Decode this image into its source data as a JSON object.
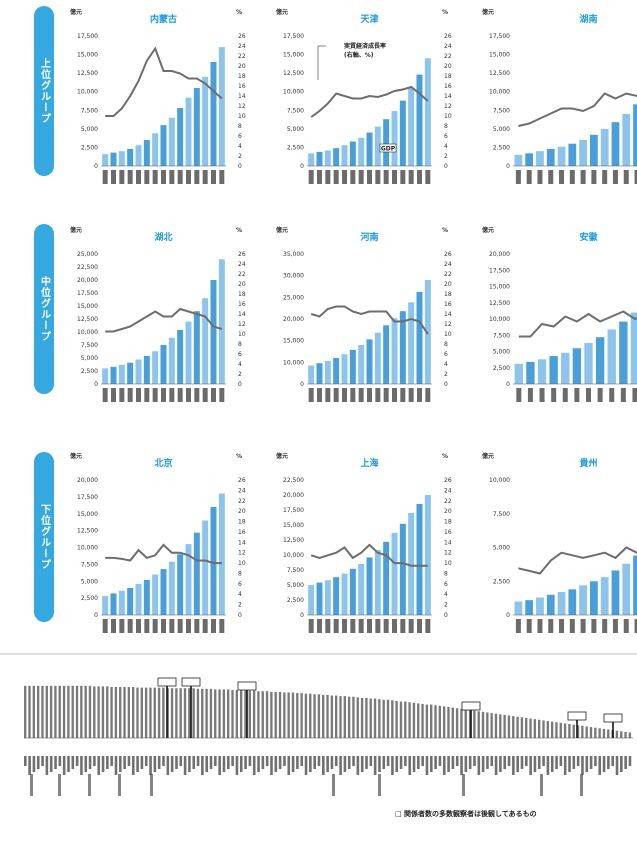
{
  "groups": [
    {
      "label": "上位グループ"
    },
    {
      "label": "中位グループ"
    },
    {
      "label": "下位グループ"
    }
  ],
  "chart_data": [
    {
      "type": "bar",
      "title": "内蒙古",
      "left_unit": "億元",
      "right_unit": "%",
      "ylim": [
        0,
        17500
      ],
      "yticks": [
        "17,500",
        "15,000",
        "12,500",
        "10,000",
        "7,500",
        "5,000",
        "2,500",
        "0"
      ],
      "rticks": [
        "26",
        "24",
        "22",
        "20",
        "18",
        "16",
        "14",
        "12",
        "10",
        "8",
        "6",
        "4",
        "2",
        "0"
      ],
      "rlim": [
        0,
        26
      ],
      "series": [
        {
          "name": "",
          "kind": "bar",
          "values": [
            1600,
            1800,
            2000,
            2300,
            2800,
            3500,
            4400,
            5500,
            6500,
            7800,
            9200,
            10500,
            12000,
            14000,
            16000
          ]
        },
        {
          "name": "",
          "kind": "line",
          "values": [
            10,
            10,
            11.5,
            14,
            17,
            21,
            23.5,
            19,
            19,
            18.5,
            17.5,
            17.5,
            16.5,
            15,
            13.5
          ]
        }
      ]
    },
    {
      "type": "bar",
      "title": "天津",
      "left_unit": "億元",
      "right_unit": "%",
      "ylim": [
        0,
        17500
      ],
      "yticks": [
        "17,500",
        "15,000",
        "12,500",
        "10,000",
        "7,500",
        "5,000",
        "2,500",
        "0"
      ],
      "rticks": [
        "26",
        "24",
        "22",
        "20",
        "18",
        "16",
        "14",
        "12",
        "10",
        "8",
        "6",
        "4",
        "2",
        "0"
      ],
      "rlim": [
        0,
        26
      ],
      "annotations": [
        "実質経済成長率",
        "(右軸、%)",
        "GDP"
      ],
      "series": [
        {
          "name": "",
          "kind": "bar",
          "values": [
            1700,
            1900,
            2100,
            2400,
            2800,
            3300,
            3800,
            4500,
            5300,
            6300,
            7400,
            8800,
            10500,
            12300,
            14500
          ]
        },
        {
          "name": "",
          "kind": "line",
          "values": [
            9.8,
            11,
            12.5,
            14.5,
            14,
            13.5,
            13.5,
            14,
            13.8,
            14.3,
            15,
            15.3,
            15.8,
            14.5,
            13
          ]
        }
      ]
    },
    {
      "type": "bar",
      "title": "湖南",
      "left_unit": "億元",
      "right_unit": "%",
      "ylim": [
        0,
        17500
      ],
      "yticks": [
        "17,500",
        "15,000",
        "12,500",
        "10,000",
        "7,500",
        "5,000",
        "2,500",
        "0"
      ],
      "series": [
        {
          "name": "",
          "kind": "bar",
          "values": [
            1500,
            1700,
            2000,
            2300,
            2600,
            3000,
            3500,
            4200,
            5000,
            5900,
            7000,
            8300,
            9700,
            11500
          ]
        },
        {
          "name": "",
          "kind": "line",
          "values": [
            8,
            8.5,
            9.5,
            10.5,
            11.5,
            11.5,
            11,
            12,
            14.5,
            13.5,
            14.5,
            14,
            15,
            14.5
          ]
        }
      ]
    },
    {
      "type": "bar",
      "title": "湖北",
      "left_unit": "億元",
      "right_unit": "%",
      "ylim": [
        0,
        25000
      ],
      "yticks": [
        "25,000",
        "22,500",
        "20,000",
        "17,500",
        "15,000",
        "12,500",
        "10,000",
        "7,500",
        "5,000",
        "2,500",
        "0"
      ],
      "rticks": [
        "26",
        "24",
        "22",
        "20",
        "18",
        "16",
        "14",
        "12",
        "10",
        "8",
        "6",
        "4",
        "2",
        "0"
      ],
      "rlim": [
        0,
        26
      ],
      "series": [
        {
          "name": "",
          "kind": "bar",
          "values": [
            3000,
            3300,
            3700,
            4100,
            4700,
            5400,
            6300,
            7500,
            8900,
            10400,
            12000,
            14000,
            16500,
            20000,
            24000
          ]
        },
        {
          "name": "",
          "kind": "line",
          "values": [
            10.5,
            10.5,
            11,
            11.5,
            12.5,
            13.5,
            14.5,
            13.5,
            13.5,
            15,
            14.5,
            14,
            13.5,
            11.5,
            11
          ]
        }
      ]
    },
    {
      "type": "bar",
      "title": "河南",
      "left_unit": "億元",
      "right_unit": "%",
      "ylim": [
        0,
        35000
      ],
      "yticks": [
        "35,000",
        "30,000",
        "25,000",
        "20,000",
        "15,000",
        "10,000",
        "0"
      ],
      "rticks": [
        "26",
        "24",
        "22",
        "20",
        "18",
        "16",
        "14",
        "12",
        "10",
        "8",
        "6",
        "4",
        "2",
        "0"
      ],
      "rlim": [
        0,
        26
      ],
      "series": [
        {
          "name": "",
          "kind": "bar",
          "values": [
            5000,
            5600,
            6200,
            7000,
            8000,
            9200,
            10500,
            12000,
            13800,
            15800,
            17700,
            19600,
            22000,
            24800,
            28000
          ]
        },
        {
          "name": "",
          "kind": "line",
          "values": [
            14,
            13.5,
            15,
            15.5,
            15.5,
            14.5,
            14,
            14.5,
            14.5,
            14.5,
            12.5,
            12.5,
            13,
            12.5,
            10
          ]
        }
      ]
    },
    {
      "type": "bar",
      "title": "安徽",
      "left_unit": "億元",
      "right_unit": "%",
      "ylim": [
        0,
        20000
      ],
      "yticks": [
        "20,000",
        "17,500",
        "15,000",
        "12,500",
        "10,000",
        "7,500",
        "5,000",
        "2,500",
        "0"
      ],
      "series": [
        {
          "name": "",
          "kind": "bar",
          "values": [
            3100,
            3400,
            3800,
            4300,
            4800,
            5500,
            6300,
            7200,
            8400,
            9600,
            11000,
            12500,
            14200
          ]
        },
        {
          "name": "",
          "kind": "line",
          "values": [
            9.5,
            9.5,
            12,
            11.5,
            13.5,
            12.5,
            14,
            12.5,
            13.5,
            14.5,
            13,
            14,
            13
          ]
        }
      ]
    },
    {
      "type": "bar",
      "title": "北京",
      "left_unit": "億元",
      "right_unit": "%",
      "ylim": [
        0,
        20000
      ],
      "yticks": [
        "20,000",
        "17,500",
        "15,000",
        "12,500",
        "10,000",
        "7,500",
        "5,000",
        "2,500",
        "0"
      ],
      "rticks": [
        "26",
        "24",
        "22",
        "20",
        "18",
        "16",
        "14",
        "12",
        "10",
        "8",
        "6",
        "4",
        "2",
        "0"
      ],
      "rlim": [
        0,
        26
      ],
      "series": [
        {
          "name": "",
          "kind": "bar",
          "values": [
            2800,
            3200,
            3600,
            4000,
            4600,
            5200,
            6000,
            6800,
            7900,
            9000,
            10500,
            12200,
            14000,
            16000,
            18000
          ]
        },
        {
          "name": "",
          "kind": "line",
          "values": [
            11,
            11,
            10.8,
            10.5,
            12.5,
            11,
            11.5,
            13.5,
            12,
            12,
            11.5,
            10.5,
            10.5,
            10,
            10
          ]
        }
      ]
    },
    {
      "type": "bar",
      "title": "上海",
      "left_unit": "億元",
      "right_unit": "%",
      "ylim": [
        0,
        22500
      ],
      "yticks": [
        "22,500",
        "20,000",
        "17,500",
        "15,000",
        "12,500",
        "10,000",
        "7,500",
        "5,000",
        "2,500",
        "0"
      ],
      "rticks": [
        "26",
        "24",
        "22",
        "20",
        "18",
        "16",
        "14",
        "12",
        "10",
        "8",
        "6",
        "4",
        "2",
        "0"
      ],
      "rlim": [
        0,
        26
      ],
      "series": [
        {
          "name": "",
          "kind": "bar",
          "values": [
            5000,
            5400,
            5800,
            6300,
            6900,
            7700,
            8500,
            9600,
            10800,
            12200,
            13700,
            15200,
            17000,
            18500,
            20000
          ]
        },
        {
          "name": "",
          "kind": "line",
          "values": [
            11.5,
            11,
            11.5,
            12,
            13,
            11,
            12,
            13.5,
            12,
            11.5,
            10,
            10,
            9.5,
            9.5,
            9.5
          ]
        }
      ]
    },
    {
      "type": "bar",
      "title": "貴州",
      "left_unit": "億元",
      "right_unit": "%",
      "ylim": [
        0,
        10000
      ],
      "yticks": [
        "10,000",
        "7,500",
        "5,000",
        "2,500",
        "0"
      ],
      "series": [
        {
          "name": "",
          "kind": "bar",
          "values": [
            1000,
            1100,
            1300,
            1500,
            1700,
            1900,
            2200,
            2500,
            2800,
            3300,
            3800,
            4400,
            5000,
            5700
          ]
        },
        {
          "name": "",
          "kind": "line",
          "values": [
            9,
            8.5,
            8,
            10.5,
            12,
            11.5,
            11,
            11.5,
            12,
            11,
            13,
            12,
            12.5,
            13
          ]
        }
      ]
    },
    {
      "type": "bar",
      "title": "",
      "ylim": [
        0,
        100
      ],
      "boxes": 6,
      "series": [
        {
          "name": "",
          "kind": "bar",
          "values": [
            86,
            86,
            86,
            86,
            86,
            86,
            86,
            86,
            86,
            86,
            86,
            86,
            86,
            86,
            86,
            86,
            85,
            85,
            85,
            85,
            84,
            84,
            84,
            84,
            84,
            84,
            83,
            83,
            83,
            83,
            83,
            83,
            83,
            82,
            82,
            82,
            82,
            82,
            82,
            82,
            81,
            81,
            81,
            81,
            80,
            80,
            80,
            80,
            79,
            79,
            79,
            78,
            78,
            78,
            77,
            77,
            77,
            76,
            76,
            76,
            75,
            75,
            75,
            74,
            74,
            73,
            73,
            72,
            72,
            71,
            71,
            70,
            70,
            69,
            69,
            68,
            68,
            67,
            66,
            66,
            65,
            65,
            64,
            63,
            63,
            62,
            61,
            60,
            60,
            59,
            58,
            57,
            56,
            55,
            55,
            54,
            53,
            52,
            51,
            50,
            49,
            48,
            47,
            46,
            45,
            44,
            43,
            42,
            41,
            40,
            39,
            38,
            37,
            36,
            35,
            34,
            33,
            32,
            31,
            30,
            29,
            28,
            27,
            26,
            25,
            24,
            23,
            22,
            21,
            20,
            19,
            18,
            17,
            16,
            15,
            14,
            13,
            12,
            11,
            10,
            9
          ]
        }
      ]
    }
  ],
  "footer_note": "□ 関係者数の多数観察者は後観してあるもの"
}
